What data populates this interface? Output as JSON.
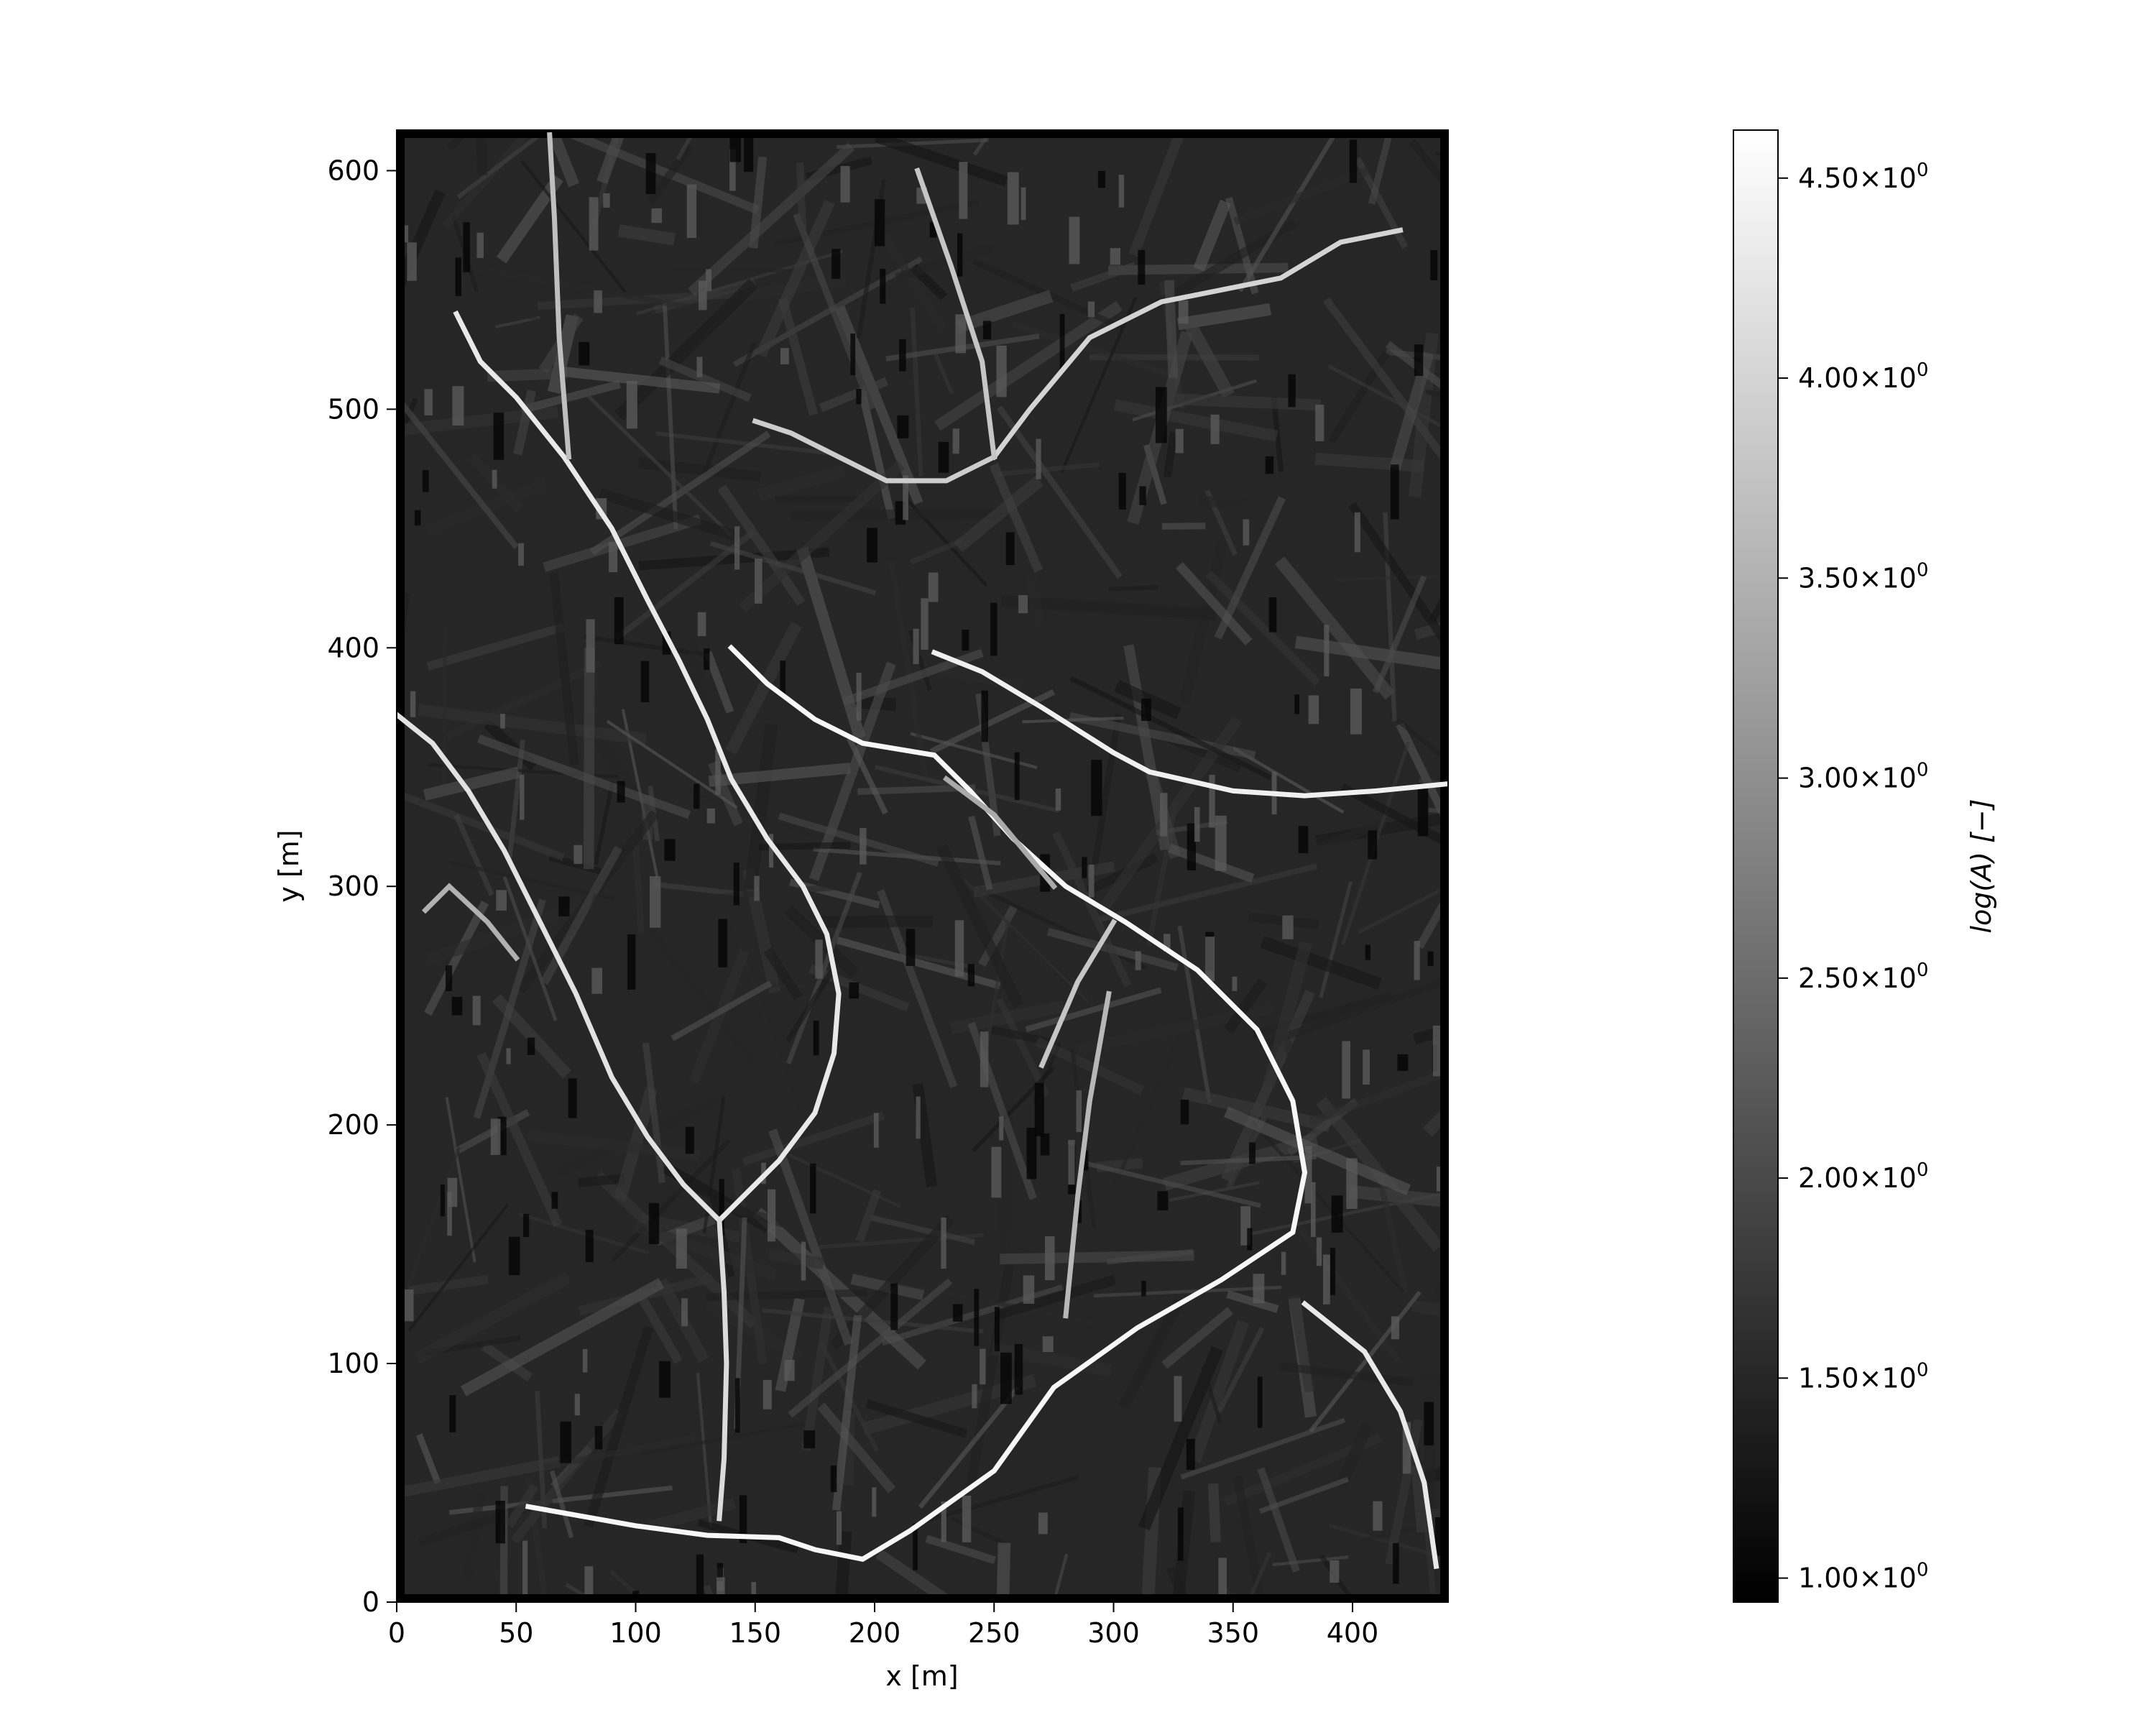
{
  "chart_data": {
    "type": "heatmap",
    "colormap": "gray",
    "xlabel": "x [m]",
    "ylabel": "y [m]",
    "xlim": [
      0,
      440
    ],
    "ylim": [
      0,
      617
    ],
    "xticks": [
      0,
      50,
      100,
      150,
      200,
      250,
      300,
      350,
      400
    ],
    "yticks": [
      0,
      100,
      200,
      300,
      400,
      500,
      600
    ],
    "colorbar": {
      "label": "log(A) [−]",
      "range": [
        0.94,
        4.62
      ],
      "ticks": [
        {
          "value": 1.0,
          "mantissa": "1.00"
        },
        {
          "value": 1.5,
          "mantissa": "1.50"
        },
        {
          "value": 2.0,
          "mantissa": "2.00"
        },
        {
          "value": 2.5,
          "mantissa": "2.50"
        },
        {
          "value": 3.0,
          "mantissa": "3.00"
        },
        {
          "value": 3.5,
          "mantissa": "3.50"
        },
        {
          "value": 4.0,
          "mantissa": "4.00"
        },
        {
          "value": 4.5,
          "mantissa": "4.50"
        }
      ],
      "tick_suffix": "×10",
      "tick_exponent": "0"
    },
    "channels": [
      {
        "value": 4.5,
        "points": [
          [
            55,
            40
          ],
          [
            100,
            32
          ],
          [
            130,
            28
          ],
          [
            160,
            27
          ],
          [
            175,
            22
          ],
          [
            195,
            18
          ],
          [
            215,
            30
          ],
          [
            250,
            55
          ],
          [
            275,
            90
          ],
          [
            310,
            115
          ],
          [
            345,
            135
          ],
          [
            375,
            155
          ],
          [
            380,
            180
          ],
          [
            375,
            210
          ],
          [
            360,
            240
          ],
          [
            335,
            265
          ],
          [
            305,
            285
          ],
          [
            280,
            300
          ],
          [
            258,
            320
          ],
          [
            240,
            340
          ],
          [
            225,
            355
          ],
          [
            195,
            360
          ],
          [
            175,
            370
          ],
          [
            155,
            385
          ],
          [
            140,
            400
          ]
        ]
      },
      {
        "value": 4.4,
        "points": [
          [
            440,
            343
          ],
          [
            410,
            340
          ],
          [
            380,
            338
          ],
          [
            350,
            340
          ],
          [
            315,
            348
          ],
          [
            300,
            356
          ],
          [
            270,
            375
          ],
          [
            245,
            390
          ],
          [
            225,
            398
          ]
        ]
      },
      {
        "value": 4.3,
        "points": [
          [
            380,
            125
          ],
          [
            405,
            105
          ],
          [
            420,
            80
          ],
          [
            430,
            50
          ],
          [
            435,
            15
          ]
        ]
      },
      {
        "value": 4.2,
        "points": [
          [
            135,
            160
          ],
          [
            120,
            175
          ],
          [
            105,
            195
          ],
          [
            90,
            220
          ],
          [
            75,
            255
          ],
          [
            60,
            285
          ],
          [
            45,
            315
          ],
          [
            30,
            340
          ],
          [
            15,
            360
          ],
          [
            0,
            372
          ]
        ]
      },
      {
        "value": 4.3,
        "points": [
          [
            135,
            160
          ],
          [
            145,
            170
          ],
          [
            160,
            185
          ],
          [
            175,
            205
          ],
          [
            183,
            230
          ],
          [
            185,
            255
          ],
          [
            180,
            280
          ],
          [
            170,
            300
          ],
          [
            155,
            320
          ],
          [
            140,
            345
          ],
          [
            130,
            370
          ],
          [
            118,
            395
          ],
          [
            105,
            420
          ],
          [
            90,
            450
          ],
          [
            70,
            480
          ],
          [
            50,
            505
          ],
          [
            35,
            520
          ],
          [
            25,
            540
          ]
        ]
      },
      {
        "value": 4.1,
        "points": [
          [
            135,
            160
          ],
          [
            137,
            130
          ],
          [
            138,
            100
          ],
          [
            137,
            60
          ],
          [
            135,
            35
          ]
        ]
      },
      {
        "value": 4.0,
        "points": [
          [
            250,
            480
          ],
          [
            265,
            500
          ],
          [
            290,
            530
          ],
          [
            320,
            545
          ],
          [
            345,
            550
          ],
          [
            370,
            555
          ],
          [
            395,
            570
          ],
          [
            420,
            575
          ]
        ]
      },
      {
        "value": 3.9,
        "points": [
          [
            250,
            480
          ],
          [
            230,
            470
          ],
          [
            205,
            470
          ],
          [
            185,
            480
          ],
          [
            165,
            490
          ],
          [
            150,
            495
          ]
        ]
      },
      {
        "value": 3.8,
        "points": [
          [
            270,
            225
          ],
          [
            285,
            260
          ],
          [
            300,
            285
          ]
        ]
      },
      {
        "value": 3.8,
        "points": [
          [
            250,
            480
          ],
          [
            245,
            520
          ],
          [
            232,
            560
          ],
          [
            218,
            600
          ]
        ]
      },
      {
        "value": 3.7,
        "points": [
          [
            72,
            480
          ],
          [
            68,
            530
          ],
          [
            66,
            580
          ],
          [
            64,
            615
          ]
        ]
      },
      {
        "value": 3.6,
        "points": [
          [
            280,
            120
          ],
          [
            285,
            170
          ],
          [
            290,
            210
          ],
          [
            298,
            255
          ]
        ]
      },
      {
        "value": 3.5,
        "points": [
          [
            12,
            290
          ],
          [
            22,
            300
          ],
          [
            38,
            285
          ],
          [
            50,
            270
          ]
        ]
      },
      {
        "value": 3.4,
        "points": [
          [
            275,
            300
          ],
          [
            250,
            330
          ],
          [
            230,
            345
          ]
        ]
      }
    ]
  }
}
